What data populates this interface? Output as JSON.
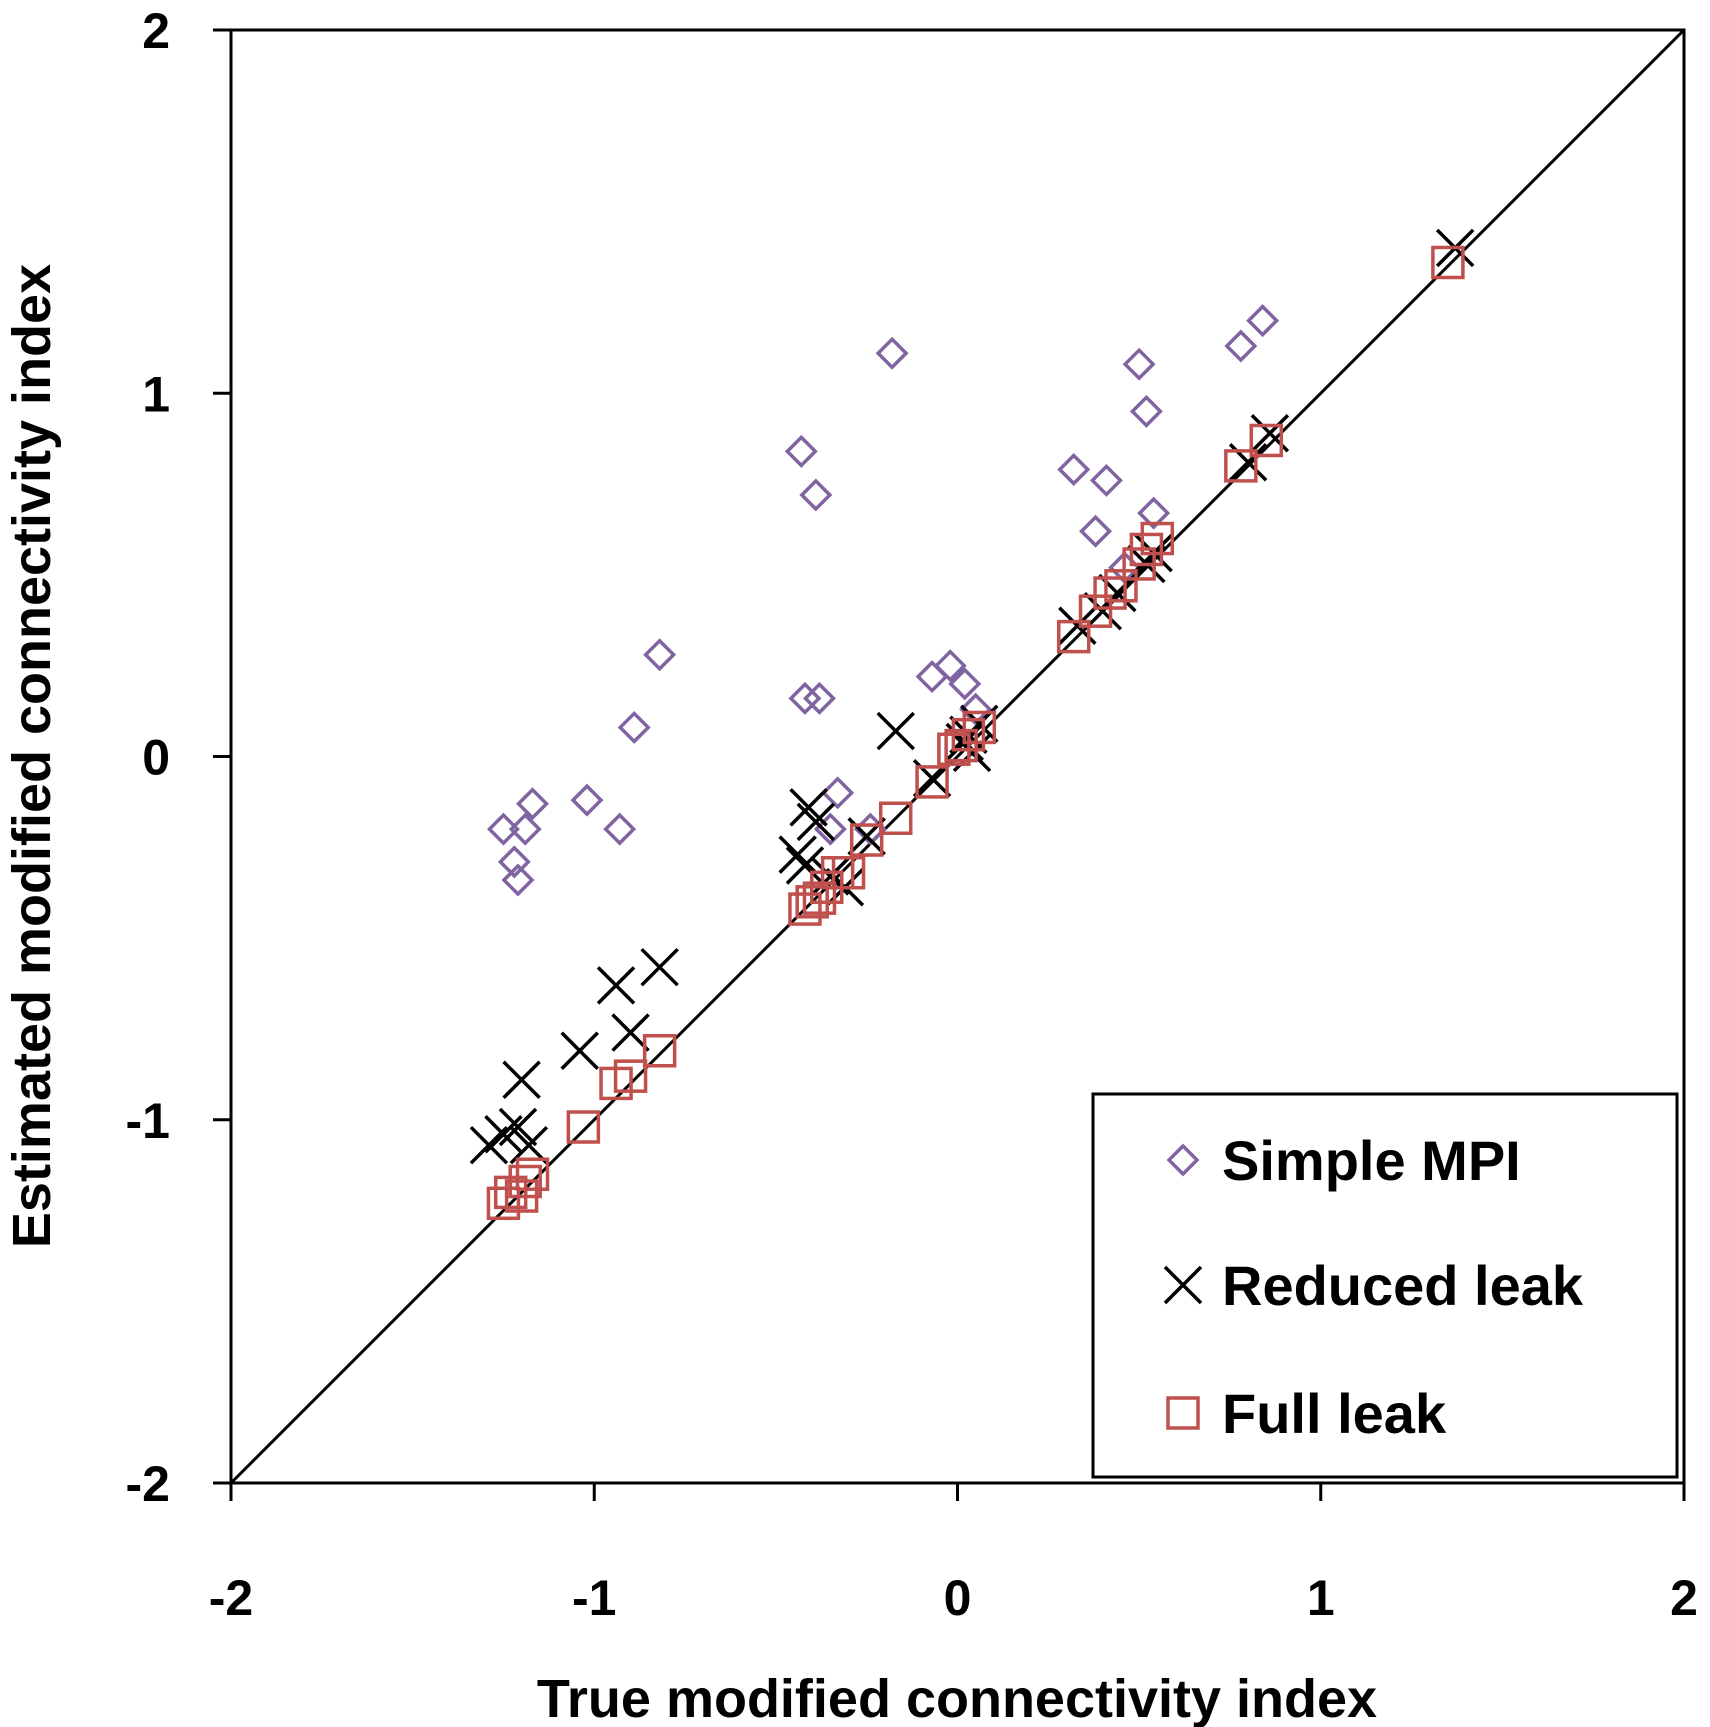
{
  "chart_data": {
    "type": "scatter",
    "title": "",
    "xlabel": "True modified connectivity index",
    "ylabel": "Estimated modified connectivity index",
    "xlim": [
      -2,
      2
    ],
    "ylim": [
      -2,
      2
    ],
    "xticks": [
      "-2",
      "-1",
      "0",
      "1",
      "2"
    ],
    "yticks": [
      "-2",
      "-1",
      "0",
      "1",
      "2"
    ],
    "grid": false,
    "legend_position": "bottom-right",
    "reference_line": {
      "name": "y = x",
      "from": [
        -2,
        -2
      ],
      "to": [
        2,
        2
      ]
    },
    "series": [
      {
        "name": "Simple MPI",
        "marker": "diamond",
        "color": "#8064A2",
        "points": [
          [
            -1.25,
            -0.2
          ],
          [
            -1.22,
            -0.29
          ],
          [
            -1.21,
            -0.34
          ],
          [
            -1.19,
            -0.2
          ],
          [
            -1.17,
            -0.13
          ],
          [
            -1.02,
            -0.12
          ],
          [
            -0.93,
            -0.2
          ],
          [
            -0.89,
            0.08
          ],
          [
            -0.82,
            0.28
          ],
          [
            -0.43,
            0.84
          ],
          [
            -0.39,
            0.72
          ],
          [
            -0.42,
            0.16
          ],
          [
            -0.38,
            0.16
          ],
          [
            -0.33,
            -0.1
          ],
          [
            -0.35,
            -0.2
          ],
          [
            -0.24,
            -0.2
          ],
          [
            -0.18,
            1.11
          ],
          [
            -0.07,
            0.22
          ],
          [
            -0.02,
            0.25
          ],
          [
            0.02,
            0.2
          ],
          [
            0.05,
            0.13
          ],
          [
            0.32,
            0.79
          ],
          [
            0.41,
            0.76
          ],
          [
            0.38,
            0.62
          ],
          [
            0.46,
            0.52
          ],
          [
            0.5,
            1.08
          ],
          [
            0.52,
            0.95
          ],
          [
            0.54,
            0.67
          ],
          [
            0.78,
            1.13
          ],
          [
            0.84,
            1.2
          ]
        ]
      },
      {
        "name": "Reduced leak",
        "color": "#000000",
        "marker": "x",
        "points": [
          [
            -1.29,
            -1.07
          ],
          [
            -1.25,
            -1.04
          ],
          [
            -1.21,
            -1.02
          ],
          [
            -1.18,
            -1.07
          ],
          [
            -1.2,
            -0.89
          ],
          [
            -1.04,
            -0.81
          ],
          [
            -0.94,
            -0.63
          ],
          [
            -0.9,
            -0.76
          ],
          [
            -0.82,
            -0.58
          ],
          [
            -0.41,
            -0.14
          ],
          [
            -0.39,
            -0.18
          ],
          [
            -0.42,
            -0.3
          ],
          [
            -0.44,
            -0.27
          ],
          [
            -0.35,
            -0.33
          ],
          [
            -0.31,
            -0.36
          ],
          [
            -0.25,
            -0.22
          ],
          [
            -0.17,
            0.07
          ],
          [
            -0.07,
            -0.06
          ],
          [
            0.02,
            0.04
          ],
          [
            0.03,
            0.06
          ],
          [
            0.04,
            0.01
          ],
          [
            0.06,
            0.09
          ],
          [
            0.33,
            0.36
          ],
          [
            0.4,
            0.4
          ],
          [
            0.44,
            0.45
          ],
          [
            0.52,
            0.53
          ],
          [
            0.54,
            0.56
          ],
          [
            0.8,
            0.81
          ],
          [
            0.86,
            0.89
          ],
          [
            1.37,
            1.4
          ]
        ]
      },
      {
        "name": "Full leak",
        "color": "#C0504D",
        "marker": "square",
        "points": [
          [
            -1.25,
            -1.23
          ],
          [
            -1.23,
            -1.2
          ],
          [
            -1.2,
            -1.21
          ],
          [
            -1.19,
            -1.17
          ],
          [
            -1.17,
            -1.15
          ],
          [
            -1.03,
            -1.02
          ],
          [
            -0.94,
            -0.9
          ],
          [
            -0.9,
            -0.88
          ],
          [
            -0.82,
            -0.81
          ],
          [
            -0.42,
            -0.42
          ],
          [
            -0.4,
            -0.4
          ],
          [
            -0.38,
            -0.39
          ],
          [
            -0.36,
            -0.36
          ],
          [
            -0.33,
            -0.32
          ],
          [
            -0.3,
            -0.32
          ],
          [
            -0.25,
            -0.23
          ],
          [
            -0.17,
            -0.17
          ],
          [
            -0.07,
            -0.07
          ],
          [
            -0.01,
            0.02
          ],
          [
            0.01,
            0.03
          ],
          [
            0.03,
            0.06
          ],
          [
            0.06,
            0.08
          ],
          [
            0.32,
            0.33
          ],
          [
            0.38,
            0.4
          ],
          [
            0.42,
            0.45
          ],
          [
            0.45,
            0.47
          ],
          [
            0.5,
            0.53
          ],
          [
            0.52,
            0.57
          ],
          [
            0.55,
            0.6
          ],
          [
            0.78,
            0.8
          ],
          [
            0.85,
            0.87
          ],
          [
            1.35,
            1.36
          ]
        ]
      }
    ]
  }
}
